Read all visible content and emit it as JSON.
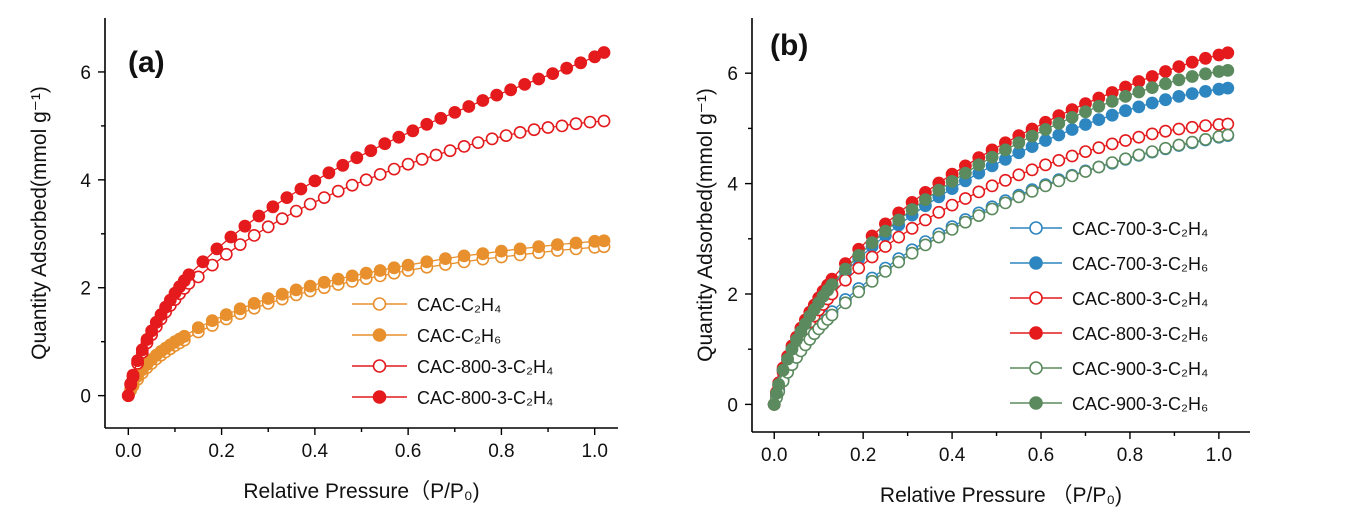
{
  "chart_data": [
    {
      "type": "scatter",
      "panel_label": "(a)",
      "xlabel": "Relative Pressure（P/P₀)",
      "ylabel": "Quantity Adsorbed(mmol g⁻¹)",
      "xlim": [
        -0.05,
        1.05
      ],
      "ylim": [
        -0.6,
        7.0
      ],
      "xticks": [
        "0.0",
        "0.2",
        "0.4",
        "0.6",
        "0.8",
        "1.0"
      ],
      "yticks": [
        "0",
        "2",
        "4",
        "6"
      ],
      "legend_position": "bottom-right",
      "series": [
        {
          "name": "CAC-C₂H₄",
          "color": "#E8902E",
          "marker": "open-circle",
          "x": [
            0.0,
            0.005,
            0.01,
            0.02,
            0.03,
            0.04,
            0.05,
            0.06,
            0.07,
            0.08,
            0.09,
            0.1,
            0.11,
            0.12,
            0.15,
            0.18,
            0.21,
            0.24,
            0.27,
            0.3,
            0.33,
            0.36,
            0.39,
            0.42,
            0.45,
            0.48,
            0.51,
            0.54,
            0.57,
            0.6,
            0.64,
            0.68,
            0.72,
            0.76,
            0.8,
            0.84,
            0.88,
            0.92,
            0.96,
            1.0,
            1.02
          ],
          "y": [
            0.0,
            0.1,
            0.18,
            0.3,
            0.42,
            0.52,
            0.6,
            0.68,
            0.75,
            0.81,
            0.87,
            0.93,
            0.98,
            1.03,
            1.18,
            1.3,
            1.42,
            1.52,
            1.62,
            1.71,
            1.79,
            1.87,
            1.94,
            2.0,
            2.06,
            2.12,
            2.17,
            2.22,
            2.27,
            2.32,
            2.38,
            2.43,
            2.48,
            2.53,
            2.57,
            2.61,
            2.65,
            2.69,
            2.72,
            2.75,
            2.76
          ]
        },
        {
          "name": "CAC-C₂H₆",
          "color": "#E8902E",
          "marker": "filled-circle",
          "x": [
            0.0,
            0.005,
            0.01,
            0.02,
            0.03,
            0.04,
            0.05,
            0.06,
            0.07,
            0.08,
            0.09,
            0.1,
            0.11,
            0.12,
            0.15,
            0.18,
            0.21,
            0.24,
            0.27,
            0.3,
            0.33,
            0.36,
            0.39,
            0.42,
            0.45,
            0.48,
            0.51,
            0.54,
            0.57,
            0.6,
            0.64,
            0.68,
            0.72,
            0.76,
            0.8,
            0.84,
            0.88,
            0.92,
            0.96,
            1.0,
            1.02
          ],
          "y": [
            0.0,
            0.12,
            0.22,
            0.36,
            0.48,
            0.58,
            0.67,
            0.75,
            0.82,
            0.88,
            0.94,
            1.0,
            1.05,
            1.1,
            1.26,
            1.39,
            1.5,
            1.61,
            1.71,
            1.8,
            1.88,
            1.96,
            2.03,
            2.1,
            2.16,
            2.22,
            2.27,
            2.32,
            2.37,
            2.42,
            2.48,
            2.54,
            2.59,
            2.63,
            2.68,
            2.72,
            2.76,
            2.8,
            2.83,
            2.86,
            2.87
          ]
        },
        {
          "name": "CAC-800-3-C₂H₄",
          "color": "#E41A1C",
          "marker": "open-circle",
          "x": [
            0.0,
            0.005,
            0.01,
            0.02,
            0.03,
            0.04,
            0.05,
            0.06,
            0.07,
            0.08,
            0.09,
            0.1,
            0.11,
            0.12,
            0.13,
            0.15,
            0.18,
            0.21,
            0.24,
            0.27,
            0.3,
            0.33,
            0.36,
            0.39,
            0.42,
            0.45,
            0.48,
            0.51,
            0.54,
            0.57,
            0.6,
            0.63,
            0.66,
            0.69,
            0.72,
            0.75,
            0.78,
            0.81,
            0.84,
            0.87,
            0.9,
            0.93,
            0.96,
            0.99,
            1.02
          ],
          "y": [
            0.0,
            0.2,
            0.35,
            0.6,
            0.8,
            0.98,
            1.13,
            1.28,
            1.42,
            1.55,
            1.67,
            1.78,
            1.89,
            1.99,
            2.08,
            2.2,
            2.42,
            2.62,
            2.8,
            2.97,
            3.13,
            3.28,
            3.42,
            3.55,
            3.67,
            3.79,
            3.9,
            4.0,
            4.1,
            4.2,
            4.29,
            4.38,
            4.46,
            4.54,
            4.62,
            4.69,
            4.76,
            4.82,
            4.88,
            4.93,
            4.97,
            5.0,
            5.04,
            5.07,
            5.09
          ]
        },
        {
          "name": "CAC-800-3-C₂H₄",
          "color": "#E41A1C",
          "marker": "filled-circle",
          "x": [
            0.0,
            0.005,
            0.01,
            0.02,
            0.03,
            0.04,
            0.05,
            0.06,
            0.07,
            0.08,
            0.09,
            0.1,
            0.11,
            0.12,
            0.13,
            0.16,
            0.19,
            0.22,
            0.25,
            0.28,
            0.31,
            0.34,
            0.37,
            0.4,
            0.43,
            0.46,
            0.49,
            0.52,
            0.55,
            0.58,
            0.61,
            0.64,
            0.67,
            0.7,
            0.73,
            0.76,
            0.79,
            0.82,
            0.85,
            0.88,
            0.91,
            0.94,
            0.97,
            1.0,
            1.02
          ],
          "y": [
            0.0,
            0.22,
            0.38,
            0.65,
            0.85,
            1.04,
            1.2,
            1.36,
            1.5,
            1.64,
            1.77,
            1.9,
            2.02,
            2.13,
            2.24,
            2.48,
            2.72,
            2.94,
            3.14,
            3.33,
            3.5,
            3.67,
            3.83,
            3.98,
            4.13,
            4.27,
            4.41,
            4.54,
            4.67,
            4.79,
            4.91,
            5.03,
            5.14,
            5.25,
            5.36,
            5.47,
            5.57,
            5.67,
            5.77,
            5.87,
            5.97,
            6.07,
            6.17,
            6.28,
            6.36
          ]
        }
      ]
    },
    {
      "type": "scatter",
      "panel_label": "(b)",
      "xlabel": "Relative Pressure （P/P₀)",
      "ylabel": "Quantity Adsorbed(mmol g⁻¹)",
      "xlim": [
        -0.05,
        1.07
      ],
      "ylim": [
        -0.5,
        7.0
      ],
      "xticks": [
        "0.0",
        "0.2",
        "0.4",
        "0.6",
        "0.8",
        "1.0"
      ],
      "yticks": [
        "0",
        "2",
        "4",
        "6"
      ],
      "legend_position": "bottom-right",
      "series": [
        {
          "name": "CAC-700-3-C₂H₄",
          "color": "#2E86C1",
          "marker": "open-circle",
          "x": [
            0.0,
            0.005,
            0.01,
            0.02,
            0.03,
            0.04,
            0.05,
            0.06,
            0.07,
            0.08,
            0.09,
            0.1,
            0.11,
            0.12,
            0.13,
            0.16,
            0.19,
            0.22,
            0.25,
            0.28,
            0.31,
            0.34,
            0.37,
            0.4,
            0.43,
            0.46,
            0.49,
            0.52,
            0.55,
            0.58,
            0.61,
            0.64,
            0.67,
            0.7,
            0.73,
            0.76,
            0.79,
            0.82,
            0.85,
            0.88,
            0.91,
            0.94,
            0.97,
            1.0,
            1.02
          ],
          "y": [
            0.0,
            0.14,
            0.26,
            0.46,
            0.63,
            0.78,
            0.91,
            1.03,
            1.14,
            1.24,
            1.34,
            1.43,
            1.52,
            1.6,
            1.68,
            1.9,
            2.1,
            2.29,
            2.47,
            2.64,
            2.8,
            2.95,
            3.09,
            3.22,
            3.35,
            3.47,
            3.58,
            3.69,
            3.79,
            3.89,
            3.98,
            4.07,
            4.15,
            4.23,
            4.3,
            4.37,
            4.44,
            4.51,
            4.57,
            4.63,
            4.69,
            4.74,
            4.79,
            4.84,
            4.87
          ]
        },
        {
          "name": "CAC-700-3-C₂H₆",
          "color": "#2E86C1",
          "marker": "filled-circle",
          "x": [
            0.0,
            0.005,
            0.01,
            0.02,
            0.03,
            0.04,
            0.05,
            0.06,
            0.07,
            0.08,
            0.09,
            0.1,
            0.11,
            0.12,
            0.13,
            0.16,
            0.19,
            0.22,
            0.25,
            0.28,
            0.31,
            0.34,
            0.37,
            0.4,
            0.43,
            0.46,
            0.49,
            0.52,
            0.55,
            0.58,
            0.61,
            0.64,
            0.67,
            0.7,
            0.73,
            0.76,
            0.79,
            0.82,
            0.85,
            0.88,
            0.91,
            0.94,
            0.97,
            1.0,
            1.02
          ],
          "y": [
            0.0,
            0.2,
            0.36,
            0.62,
            0.82,
            1.0,
            1.16,
            1.31,
            1.45,
            1.58,
            1.7,
            1.82,
            1.93,
            2.04,
            2.14,
            2.4,
            2.64,
            2.86,
            3.06,
            3.25,
            3.43,
            3.6,
            3.76,
            3.91,
            4.05,
            4.19,
            4.32,
            4.44,
            4.56,
            4.67,
            4.78,
            4.88,
            4.98,
            5.07,
            5.16,
            5.24,
            5.32,
            5.39,
            5.46,
            5.52,
            5.58,
            5.63,
            5.67,
            5.71,
            5.73
          ]
        },
        {
          "name": "CAC-800-3-C₂H₄",
          "color": "#E41A1C",
          "marker": "open-circle",
          "x": [
            0.0,
            0.005,
            0.01,
            0.02,
            0.03,
            0.04,
            0.05,
            0.06,
            0.07,
            0.08,
            0.09,
            0.1,
            0.11,
            0.12,
            0.13,
            0.16,
            0.19,
            0.22,
            0.25,
            0.28,
            0.31,
            0.34,
            0.37,
            0.4,
            0.43,
            0.46,
            0.49,
            0.52,
            0.55,
            0.58,
            0.61,
            0.64,
            0.67,
            0.7,
            0.73,
            0.76,
            0.79,
            0.82,
            0.85,
            0.88,
            0.91,
            0.94,
            0.97,
            1.0,
            1.02
          ],
          "y": [
            0.0,
            0.19,
            0.34,
            0.58,
            0.78,
            0.95,
            1.1,
            1.24,
            1.37,
            1.49,
            1.6,
            1.71,
            1.81,
            1.91,
            2.0,
            2.25,
            2.47,
            2.67,
            2.86,
            3.03,
            3.19,
            3.34,
            3.48,
            3.61,
            3.73,
            3.85,
            3.96,
            4.06,
            4.16,
            4.25,
            4.34,
            4.42,
            4.5,
            4.58,
            4.65,
            4.72,
            4.78,
            4.84,
            4.9,
            4.95,
            4.99,
            5.02,
            5.05,
            5.07,
            5.08
          ]
        },
        {
          "name": "CAC-800-3-C₂H₆",
          "color": "#E41A1C",
          "marker": "filled-circle",
          "x": [
            0.0,
            0.005,
            0.01,
            0.02,
            0.03,
            0.04,
            0.05,
            0.06,
            0.07,
            0.08,
            0.09,
            0.1,
            0.11,
            0.12,
            0.13,
            0.16,
            0.19,
            0.22,
            0.25,
            0.28,
            0.31,
            0.34,
            0.37,
            0.4,
            0.43,
            0.46,
            0.49,
            0.52,
            0.55,
            0.58,
            0.61,
            0.64,
            0.67,
            0.7,
            0.73,
            0.76,
            0.79,
            0.82,
            0.85,
            0.88,
            0.91,
            0.94,
            0.97,
            1.0,
            1.02
          ],
          "y": [
            0.0,
            0.22,
            0.39,
            0.66,
            0.87,
            1.06,
            1.22,
            1.38,
            1.53,
            1.67,
            1.8,
            1.93,
            2.05,
            2.16,
            2.27,
            2.55,
            2.81,
            3.05,
            3.27,
            3.47,
            3.66,
            3.84,
            4.01,
            4.17,
            4.32,
            4.47,
            4.61,
            4.74,
            4.87,
            4.99,
            5.11,
            5.23,
            5.34,
            5.45,
            5.55,
            5.65,
            5.75,
            5.85,
            5.94,
            6.03,
            6.12,
            6.2,
            6.27,
            6.33,
            6.37
          ]
        },
        {
          "name": "CAC-900-3-C₂H₄",
          "color": "#5B8A5E",
          "marker": "open-circle",
          "x": [
            0.0,
            0.005,
            0.01,
            0.02,
            0.03,
            0.04,
            0.05,
            0.06,
            0.07,
            0.08,
            0.09,
            0.1,
            0.11,
            0.12,
            0.13,
            0.16,
            0.19,
            0.22,
            0.25,
            0.28,
            0.31,
            0.34,
            0.37,
            0.4,
            0.43,
            0.46,
            0.49,
            0.52,
            0.55,
            0.58,
            0.61,
            0.64,
            0.67,
            0.7,
            0.73,
            0.76,
            0.79,
            0.82,
            0.85,
            0.88,
            0.91,
            0.94,
            0.97,
            1.0,
            1.02
          ],
          "y": [
            0.0,
            0.12,
            0.23,
            0.42,
            0.58,
            0.72,
            0.85,
            0.97,
            1.08,
            1.18,
            1.28,
            1.37,
            1.46,
            1.54,
            1.62,
            1.84,
            2.04,
            2.23,
            2.41,
            2.58,
            2.74,
            2.89,
            3.03,
            3.17,
            3.3,
            3.42,
            3.54,
            3.65,
            3.76,
            3.86,
            3.96,
            4.05,
            4.14,
            4.22,
            4.3,
            4.38,
            4.45,
            4.52,
            4.58,
            4.64,
            4.7,
            4.75,
            4.8,
            4.85,
            4.88
          ]
        },
        {
          "name": "CAC-900-3-C₂H₆",
          "color": "#5B8A5E",
          "marker": "filled-circle",
          "x": [
            0.0,
            0.005,
            0.01,
            0.02,
            0.03,
            0.04,
            0.05,
            0.06,
            0.07,
            0.08,
            0.09,
            0.1,
            0.11,
            0.12,
            0.13,
            0.16,
            0.19,
            0.22,
            0.25,
            0.28,
            0.31,
            0.34,
            0.37,
            0.4,
            0.43,
            0.46,
            0.49,
            0.52,
            0.55,
            0.58,
            0.61,
            0.64,
            0.67,
            0.7,
            0.73,
            0.76,
            0.79,
            0.82,
            0.85,
            0.88,
            0.91,
            0.94,
            0.97,
            1.0,
            1.02
          ],
          "y": [
            0.0,
            0.2,
            0.36,
            0.62,
            0.82,
            1.0,
            1.17,
            1.32,
            1.46,
            1.6,
            1.72,
            1.84,
            1.96,
            2.07,
            2.17,
            2.45,
            2.7,
            2.93,
            3.14,
            3.34,
            3.53,
            3.71,
            3.88,
            4.04,
            4.19,
            4.34,
            4.48,
            4.61,
            4.74,
            4.86,
            4.98,
            5.09,
            5.2,
            5.3,
            5.4,
            5.49,
            5.58,
            5.66,
            5.74,
            5.81,
            5.88,
            5.94,
            5.99,
            6.03,
            6.05
          ]
        }
      ]
    }
  ]
}
